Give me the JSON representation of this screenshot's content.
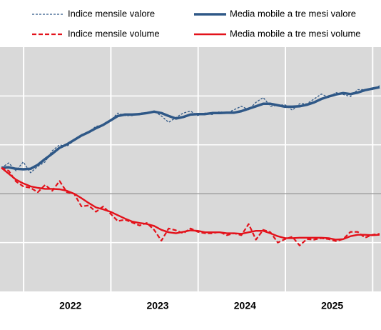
{
  "chart_data": {
    "type": "line",
    "categories": [
      null,
      null,
      null,
      null,
      null,
      null,
      null,
      null,
      null,
      "2022",
      null,
      null,
      null,
      null,
      null,
      null,
      null,
      null,
      null,
      null,
      null,
      "2023",
      null,
      null,
      null,
      null,
      null,
      null,
      null,
      null,
      null,
      null,
      null,
      "2024",
      null,
      null,
      null,
      null,
      null,
      null,
      null,
      null,
      null,
      null,
      null,
      "2025",
      null,
      null,
      null,
      null,
      null,
      null,
      null
    ],
    "series": [
      {
        "name": "Indice mensile valore",
        "color": "#2f5887",
        "dashed": true,
        "values": [
          105.3,
          106.3,
          104.7,
          106.5,
          104.3,
          105.6,
          106.5,
          108.8,
          110.0,
          109.7,
          110.9,
          112.1,
          112.6,
          113.8,
          114.0,
          115.0,
          116.5,
          116.0,
          116.0,
          116.5,
          116.6,
          116.9,
          115.9,
          114.6,
          115.6,
          116.5,
          116.9,
          116.0,
          116.5,
          116.2,
          116.8,
          116.5,
          117.2,
          117.9,
          117.2,
          118.7,
          119.7,
          117.9,
          118.1,
          118.2,
          117.1,
          118.4,
          118.4,
          119.4,
          120.4,
          119.7,
          120.7,
          120.3,
          119.9,
          121.3,
          121.3,
          121.3,
          122.1
        ]
      },
      {
        "name": "Media mobile a tre mesi valore",
        "color": "#2f5887",
        "dashed": false,
        "values": [
          105.3,
          105.4,
          105.1,
          105.0,
          105.1,
          105.9,
          107.1,
          108.2,
          109.4,
          110.1,
          111.0,
          111.9,
          112.6,
          113.4,
          114.1,
          115.0,
          115.9,
          116.2,
          116.2,
          116.3,
          116.5,
          116.8,
          116.5,
          115.9,
          115.4,
          115.7,
          116.2,
          116.3,
          116.3,
          116.5,
          116.5,
          116.6,
          116.6,
          116.9,
          117.4,
          117.9,
          118.4,
          118.4,
          118.1,
          117.8,
          117.8,
          117.9,
          118.2,
          118.7,
          119.4,
          119.9,
          120.3,
          120.6,
          120.4,
          120.7,
          121.2,
          121.5,
          121.8
        ]
      },
      {
        "name": "Indice mensile volume",
        "color": "#e3121b",
        "dashed": true,
        "values": [
          105.3,
          104.7,
          102.5,
          101.5,
          101.2,
          100.3,
          101.8,
          100.6,
          102.6,
          100.3,
          100.0,
          97.4,
          97.6,
          96.3,
          97.4,
          95.9,
          94.4,
          94.7,
          94.1,
          93.5,
          94.0,
          92.6,
          90.4,
          92.9,
          92.5,
          91.9,
          92.9,
          92.2,
          91.9,
          91.9,
          92.2,
          91.5,
          91.9,
          91.5,
          93.8,
          90.6,
          92.6,
          92.1,
          90.0,
          90.7,
          91.2,
          89.4,
          90.7,
          90.6,
          90.9,
          90.7,
          90.3,
          90.7,
          92.2,
          92.2,
          91.0,
          91.6,
          91.8
        ]
      },
      {
        "name": "Media mobile a tre mesi volume",
        "color": "#e3121b",
        "dashed": false,
        "values": [
          105.3,
          104.1,
          102.9,
          102.1,
          101.5,
          101.2,
          101.0,
          101.0,
          100.9,
          100.6,
          100.0,
          99.1,
          98.1,
          97.2,
          96.8,
          96.3,
          95.6,
          94.9,
          94.3,
          94.0,
          93.8,
          93.4,
          92.6,
          92.1,
          91.9,
          92.2,
          92.5,
          92.4,
          92.1,
          92.1,
          92.1,
          91.9,
          91.9,
          91.8,
          92.1,
          92.4,
          92.4,
          91.9,
          91.3,
          90.9,
          90.9,
          91.0,
          91.0,
          91.0,
          91.0,
          90.9,
          90.6,
          90.7,
          91.3,
          91.6,
          91.6,
          91.5,
          91.6
        ]
      }
    ],
    "ylim": [
      80,
      130
    ],
    "yticks": [
      90,
      100,
      110,
      120
    ],
    "baseline": 100,
    "grid": true,
    "legend": "top"
  }
}
